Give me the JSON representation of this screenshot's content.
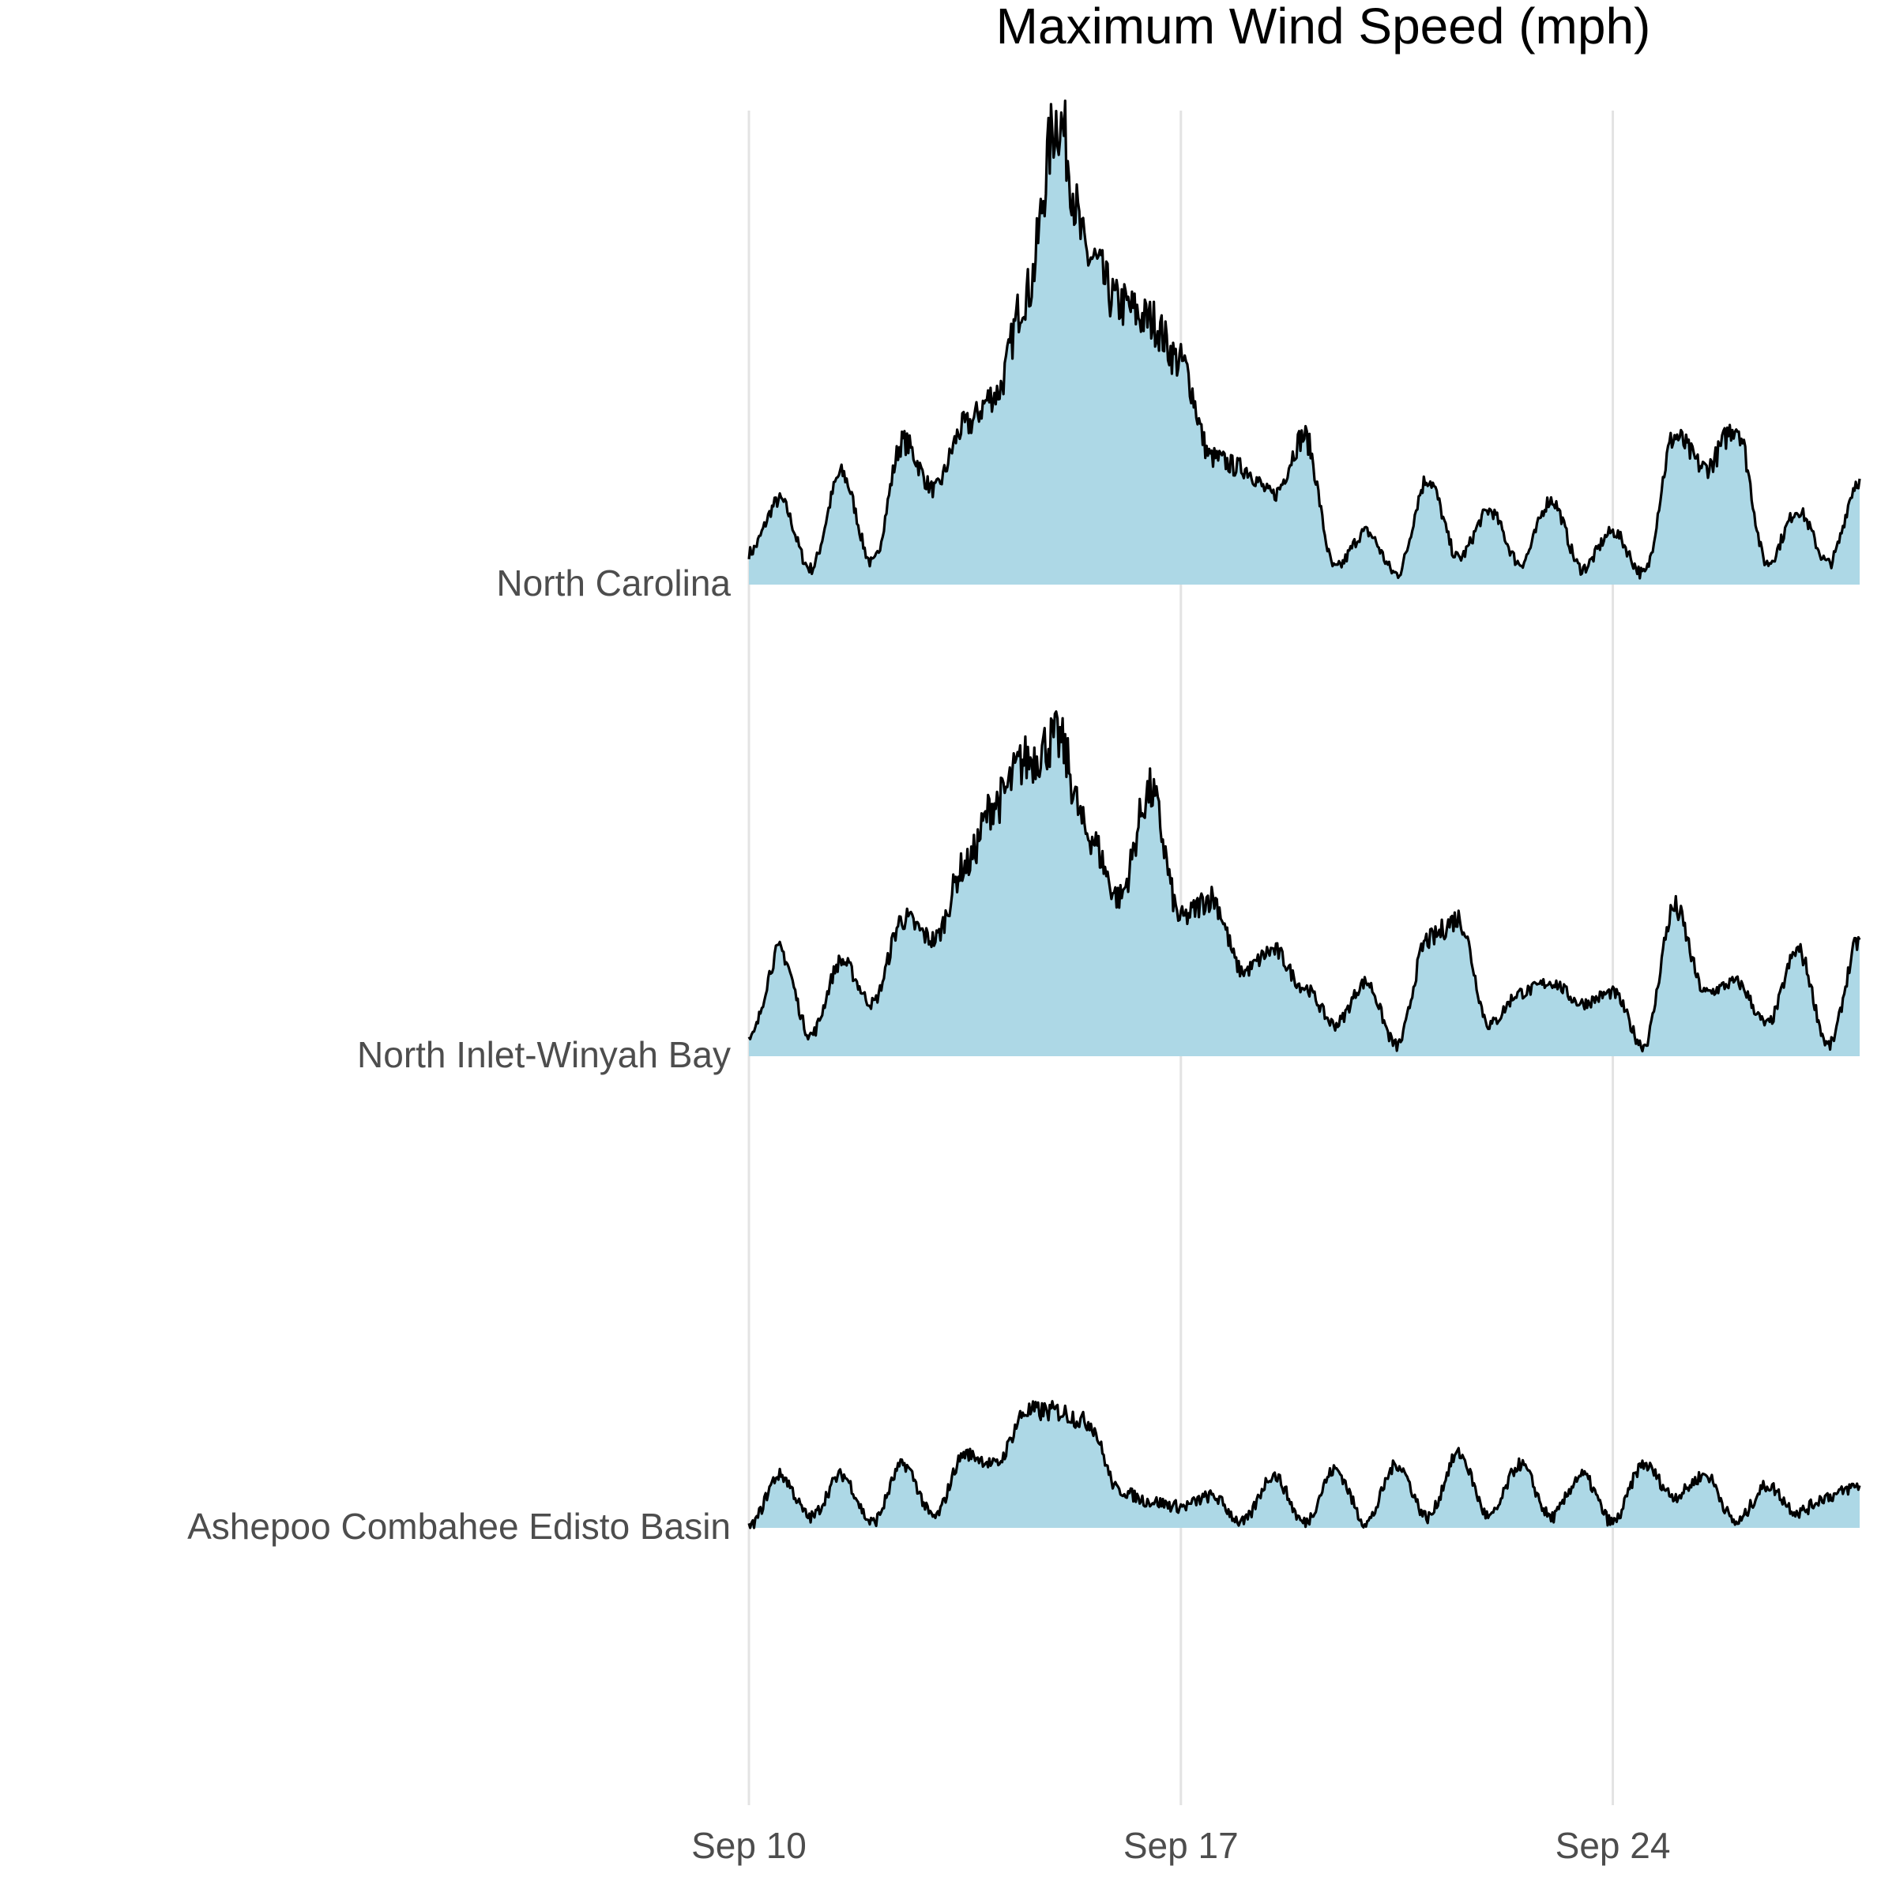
{
  "chart_data": {
    "type": "area",
    "title": "Maximum Wind Speed (mph)",
    "xlabel": "",
    "ylabel": "",
    "x_axis": {
      "start": "Sep 10",
      "end": "Sep 28",
      "ticks": [
        "Sep 10",
        "Sep 17",
        "Sep 24"
      ]
    },
    "grid": "vertical major gridlines only",
    "fill_color": "#add8e6",
    "line_color": "#000000",
    "series": [
      {
        "name": "North Carolina",
        "x": [
          "Sep 10",
          "Sep 10 12:00",
          "Sep 11",
          "Sep 11 12:00",
          "Sep 12",
          "Sep 12 12:00",
          "Sep 13",
          "Sep 13 12:00",
          "Sep 14",
          "Sep 14 12:00",
          "Sep 15",
          "Sep 15 12:00",
          "Sep 16",
          "Sep 16 12:00",
          "Sep 17",
          "Sep 17 12:00",
          "Sep 18",
          "Sep 18 12:00",
          "Sep 19",
          "Sep 19 12:00",
          "Sep 20",
          "Sep 20 12:00",
          "Sep 21",
          "Sep 21 12:00",
          "Sep 22",
          "Sep 22 12:00",
          "Sep 23",
          "Sep 23 12:00",
          "Sep 24",
          "Sep 24 12:00",
          "Sep 25",
          "Sep 25 12:00",
          "Sep 26",
          "Sep 26 12:00",
          "Sep 27",
          "Sep 27 12:00",
          "Sep 28"
        ],
        "values": [
          6,
          16,
          3,
          21,
          4,
          27,
          18,
          30,
          36,
          55,
          88,
          62,
          53,
          50,
          42,
          24,
          22,
          17,
          28,
          3,
          10,
          2,
          20,
          5,
          14,
          4,
          16,
          3,
          10,
          2,
          28,
          22,
          30,
          4,
          14,
          4,
          20
        ]
      },
      {
        "name": "North Inlet-Winyah Bay",
        "x": [
          "Sep 10",
          "Sep 10 12:00",
          "Sep 11",
          "Sep 11 12:00",
          "Sep 12",
          "Sep 12 12:00",
          "Sep 13",
          "Sep 13 12:00",
          "Sep 14",
          "Sep 14 12:00",
          "Sep 15",
          "Sep 15 12:00",
          "Sep 16",
          "Sep 16 12:00",
          "Sep 17",
          "Sep 17 12:00",
          "Sep 18",
          "Sep 18 12:00",
          "Sep 19",
          "Sep 19 12:00",
          "Sep 20",
          "Sep 20 12:00",
          "Sep 21",
          "Sep 21 12:00",
          "Sep 22",
          "Sep 22 12:00",
          "Sep 23",
          "Sep 23 12:00",
          "Sep 24",
          "Sep 24 12:00",
          "Sep 25",
          "Sep 25 12:00",
          "Sep 26",
          "Sep 26 12:00",
          "Sep 27",
          "Sep 27 12:00",
          "Sep 28"
        ],
        "values": [
          3,
          20,
          4,
          18,
          10,
          26,
          22,
          36,
          48,
          56,
          60,
          42,
          30,
          50,
          26,
          30,
          16,
          20,
          13,
          6,
          14,
          2,
          22,
          26,
          6,
          12,
          14,
          10,
          12,
          2,
          28,
          12,
          14,
          6,
          20,
          2,
          22
        ]
      },
      {
        "name": "Ashepoo Combahee Edisto Basin",
        "x": [
          "Sep 10",
          "Sep 10 12:00",
          "Sep 11",
          "Sep 11 12:00",
          "Sep 12",
          "Sep 12 12:00",
          "Sep 13",
          "Sep 13 12:00",
          "Sep 14",
          "Sep 14 12:00",
          "Sep 15",
          "Sep 15 12:00",
          "Sep 16",
          "Sep 16 12:00",
          "Sep 17",
          "Sep 17 12:00",
          "Sep 18",
          "Sep 18 12:00",
          "Sep 19",
          "Sep 19 12:00",
          "Sep 20",
          "Sep 20 12:00",
          "Sep 21",
          "Sep 21 12:00",
          "Sep 22",
          "Sep 22 12:00",
          "Sep 23",
          "Sep 23 12:00",
          "Sep 24",
          "Sep 24 12:00",
          "Sep 25",
          "Sep 25 12:00",
          "Sep 26",
          "Sep 26 12:00",
          "Sep 27",
          "Sep 27 12:00",
          "Sep 28"
        ],
        "values": [
          0,
          10,
          2,
          10,
          1,
          12,
          2,
          14,
          12,
          22,
          22,
          20,
          7,
          5,
          4,
          6,
          1,
          10,
          1,
          11,
          1,
          12,
          2,
          14,
          2,
          12,
          2,
          10,
          1,
          12,
          6,
          10,
          1,
          8,
          3,
          6,
          8
        ]
      }
    ]
  }
}
